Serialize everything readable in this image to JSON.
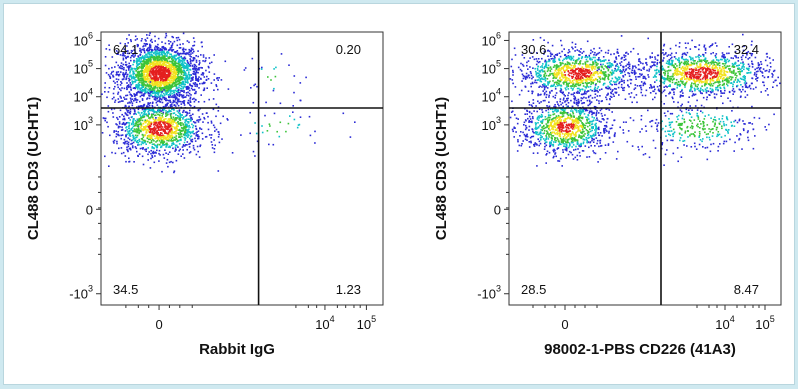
{
  "chart_data": [
    {
      "type": "scatter",
      "subtype": "flow-cytometry-density-dotplot",
      "xlabel": "Rabbit IgG",
      "ylabel": "CL488 CD3 (UCHT1)",
      "x_ticks": [
        {
          "v": 0,
          "base": "0",
          "exp": ""
        },
        {
          "v": 4,
          "base": "10",
          "exp": "4"
        },
        {
          "v": 5,
          "base": "10",
          "exp": "5"
        }
      ],
      "y_ticks": [
        {
          "v": -3,
          "base": "-10",
          "exp": "3"
        },
        {
          "v": 0,
          "base": "0",
          "exp": ""
        },
        {
          "v": 3,
          "base": "10",
          "exp": "3"
        },
        {
          "v": 4,
          "base": "10",
          "exp": "4"
        },
        {
          "v": 5,
          "base": "10",
          "exp": "5"
        },
        {
          "v": 6,
          "base": "10",
          "exp": "6"
        }
      ],
      "quadrant_gate": {
        "x": 2.4,
        "y": 3.6
      },
      "quadrants": {
        "upper_left": "64.1",
        "upper_right": "0.20",
        "lower_left": "34.5",
        "lower_right": "1.23"
      },
      "populations": [
        {
          "cx": 0,
          "cy": 4.85,
          "sx": 0.5,
          "sy": 0.55,
          "pct": 64.1
        },
        {
          "cx": 0,
          "cy": 2.9,
          "sx": 0.55,
          "sy": 0.5,
          "pct": 34.5
        },
        {
          "cx": 2.9,
          "cy": 2.9,
          "sx": 0.7,
          "sy": 0.45,
          "pct": 1.23
        },
        {
          "cx": 2.7,
          "cy": 4.7,
          "sx": 0.4,
          "sy": 0.4,
          "pct": 0.2
        }
      ]
    },
    {
      "type": "scatter",
      "subtype": "flow-cytometry-density-dotplot",
      "xlabel": "98002-1-PBS CD226 (41A3)",
      "ylabel": "CL488 CD3 (UCHT1)",
      "x_ticks": [
        {
          "v": 0,
          "base": "0",
          "exp": ""
        },
        {
          "v": 4,
          "base": "10",
          "exp": "4"
        },
        {
          "v": 5,
          "base": "10",
          "exp": "5"
        }
      ],
      "y_ticks": [
        {
          "v": -3,
          "base": "-10",
          "exp": "3"
        },
        {
          "v": 0,
          "base": "0",
          "exp": ""
        },
        {
          "v": 3,
          "base": "10",
          "exp": "3"
        },
        {
          "v": 4,
          "base": "10",
          "exp": "4"
        },
        {
          "v": 5,
          "base": "10",
          "exp": "5"
        },
        {
          "v": 6,
          "base": "10",
          "exp": "6"
        }
      ],
      "quadrant_gate": {
        "x": 2.4,
        "y": 3.6
      },
      "quadrants": {
        "upper_left": "30.6",
        "upper_right": "32.4",
        "lower_left": "28.5",
        "lower_right": "8.47"
      },
      "populations": [
        {
          "cx": 0.3,
          "cy": 4.85,
          "sx": 0.75,
          "sy": 0.42,
          "pct": 30.6
        },
        {
          "cx": 3.4,
          "cy": 4.85,
          "sx": 0.85,
          "sy": 0.42,
          "pct": 32.4
        },
        {
          "cx": 0,
          "cy": 2.95,
          "sx": 0.55,
          "sy": 0.5,
          "pct": 28.5
        },
        {
          "cx": 3.3,
          "cy": 2.95,
          "sx": 0.8,
          "sy": 0.45,
          "pct": 8.47
        }
      ]
    }
  ],
  "colors": {
    "density_low": "#2b2bd6",
    "density_mid": "#10c2c8",
    "density_midhigh": "#3cc43a",
    "density_high": "#f2e21e",
    "density_peak": "#e41f1f",
    "gate_line": "#111111"
  }
}
